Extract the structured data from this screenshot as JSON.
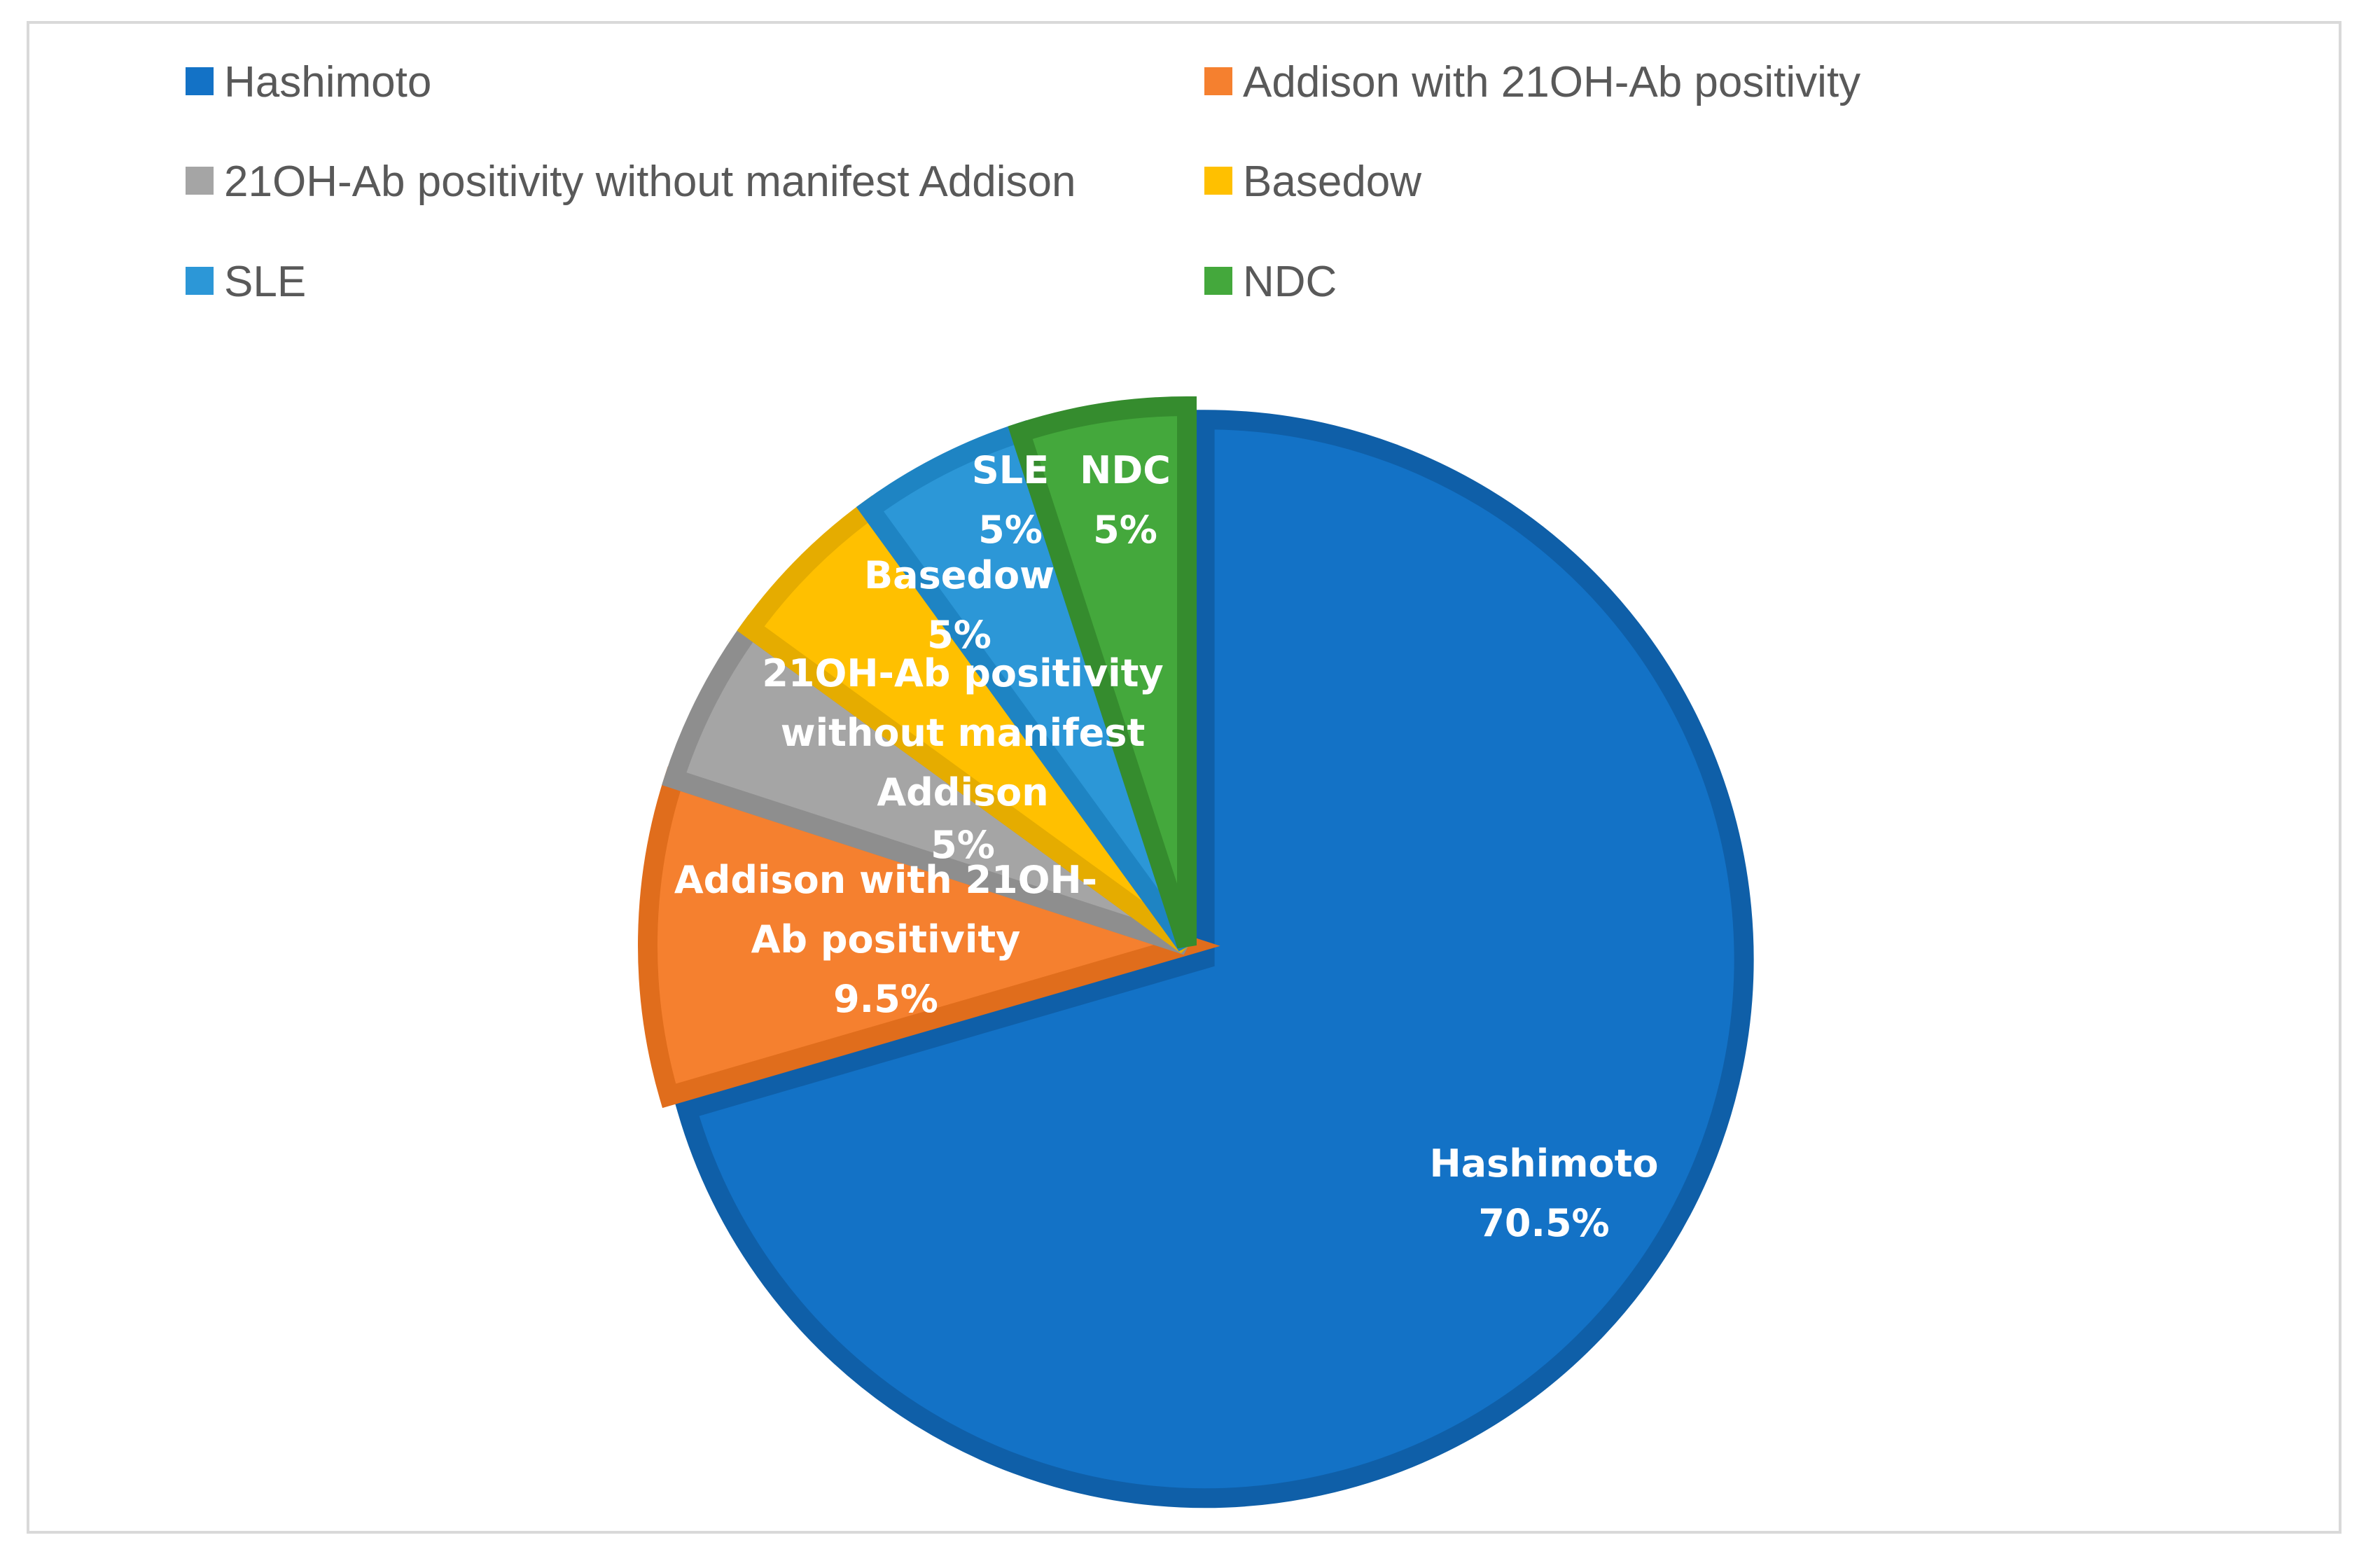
{
  "chart_data": {
    "type": "pie",
    "title": "",
    "slices": [
      {
        "name": "Hashimoto",
        "value": 70.5,
        "label": "Hashimoto",
        "value_label": "70.5%",
        "color": "#1372C6",
        "edge_color": "#0F5FA8"
      },
      {
        "name": "Addison with 21OH-Ab positivity",
        "value": 9.5,
        "label": "Addison with 21OH-Ab positivity",
        "value_label": "9.5%",
        "color": "#F5802F",
        "edge_color": "#E06D1C"
      },
      {
        "name": "21OH-Ab positivity without manifest Addison",
        "value": 5,
        "label": "21OH-Ab positivity without manifest Addison",
        "value_label": "5%",
        "color": "#A5A5A5",
        "edge_color": "#8E8E8E"
      },
      {
        "name": "Basedow",
        "value": 5,
        "label": "Basedow",
        "value_label": "5%",
        "color": "#FFC000",
        "edge_color": "#E5AC00"
      },
      {
        "name": "SLE",
        "value": 5,
        "label": "SLE",
        "value_label": "5%",
        "color": "#2C97D7",
        "edge_color": "#1E84C3"
      },
      {
        "name": "NDC",
        "value": 5,
        "label": "NDC",
        "value_label": "5%",
        "color": "#44A83C",
        "edge_color": "#358C2E"
      }
    ],
    "start_angle": "12 o'clock",
    "direction": "clockwise",
    "legend_position": "top",
    "legend_columns": 2
  }
}
